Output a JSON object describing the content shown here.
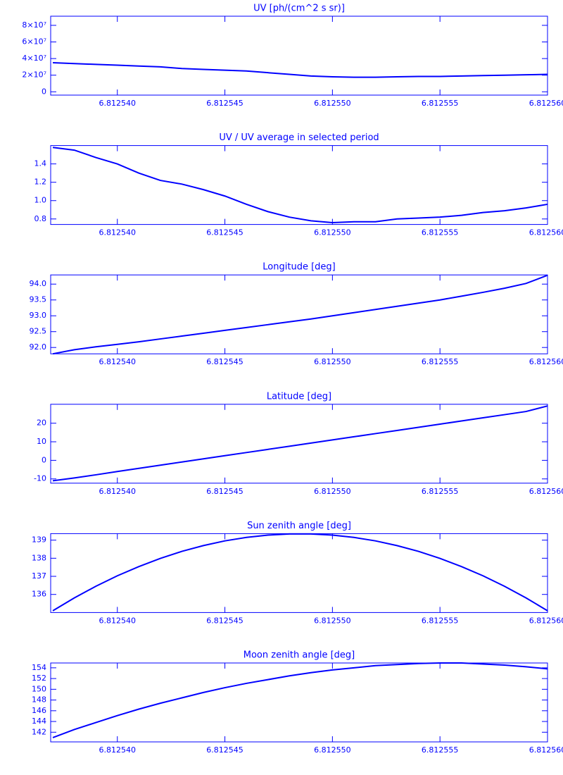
{
  "chart_data": [
    {
      "type": "line",
      "title": "UV [ph/(cm^2 s sr)]",
      "color": "#0000ff",
      "x": [
        6.812537,
        6.812538,
        6.812539,
        6.81254,
        6.812541,
        6.812542,
        6.812543,
        6.812544,
        6.812545,
        6.812546,
        6.812547,
        6.812548,
        6.812549,
        6.81255,
        6.812551,
        6.812552,
        6.812553,
        6.812554,
        6.812555,
        6.812556,
        6.812557,
        6.812558,
        6.812559,
        6.81256
      ],
      "values": [
        35000000,
        34000000,
        33000000,
        32000000,
        31000000,
        30000000,
        28000000,
        27000000,
        26000000,
        25000000,
        23000000,
        21000000,
        19000000,
        18000000,
        17500000,
        17500000,
        18000000,
        18500000,
        18500000,
        19000000,
        19500000,
        20000000,
        20500000,
        21000000
      ],
      "xlim": [
        6.8125369,
        6.81256
      ],
      "xticks": [
        {
          "value": 6.81254,
          "label": "6.812540"
        },
        6.812545,
        {
          "value": 6.81255,
          "label": "6.812550"
        },
        6.812555,
        {
          "value": 6.81256,
          "label": "6.812560"
        }
      ],
      "ylim": [
        -4000000,
        91000000
      ],
      "yticks": [
        0,
        {
          "value": 20000000,
          "label": "2×10⁷"
        },
        {
          "value": 40000000,
          "label": "4×10⁷"
        },
        {
          "value": 60000000,
          "label": "6×10⁷"
        },
        {
          "value": 80000000,
          "label": "8×10⁷"
        }
      ]
    },
    {
      "type": "line",
      "title": "UV / UV average in selected period",
      "color": "#0000ff",
      "x": [
        6.812537,
        6.812538,
        6.812539,
        6.81254,
        6.812541,
        6.812542,
        6.812543,
        6.812544,
        6.812545,
        6.812546,
        6.812547,
        6.812548,
        6.812549,
        6.81255,
        6.812551,
        6.812552,
        6.812553,
        6.812554,
        6.812555,
        6.812556,
        6.812557,
        6.812558,
        6.812559,
        6.81256
      ],
      "values": [
        1.58,
        1.55,
        1.47,
        1.4,
        1.3,
        1.22,
        1.18,
        1.12,
        1.05,
        0.96,
        0.88,
        0.82,
        0.78,
        0.76,
        0.77,
        0.77,
        0.8,
        0.81,
        0.82,
        0.84,
        0.87,
        0.89,
        0.92,
        0.96
      ],
      "xlim": [
        6.8125369,
        6.81256
      ],
      "xticks": [
        {
          "value": 6.81254,
          "label": "6.812540"
        },
        6.812545,
        {
          "value": 6.81255,
          "label": "6.812550"
        },
        6.812555,
        {
          "value": 6.81256,
          "label": "6.812560"
        }
      ],
      "ylim": [
        0.74,
        1.6
      ],
      "yticks": [
        0.8,
        {
          "value": 1,
          "label": "1.0"
        },
        1.2,
        1.4
      ]
    },
    {
      "type": "line",
      "title": "Longitude [deg]",
      "color": "#0000ff",
      "x": [
        6.812537,
        6.812538,
        6.812539,
        6.81254,
        6.812541,
        6.812542,
        6.812543,
        6.812544,
        6.812545,
        6.812546,
        6.812547,
        6.812548,
        6.812549,
        6.81255,
        6.812551,
        6.812552,
        6.812553,
        6.812554,
        6.812555,
        6.812556,
        6.812557,
        6.812558,
        6.812559,
        6.81256
      ],
      "values": [
        91.8,
        91.93,
        92.02,
        92.1,
        92.18,
        92.27,
        92.36,
        92.45,
        92.54,
        92.63,
        92.72,
        92.81,
        92.9,
        93.0,
        93.1,
        93.2,
        93.3,
        93.4,
        93.5,
        93.62,
        93.74,
        93.87,
        94.02,
        94.28
      ],
      "xlim": [
        6.8125369,
        6.81256
      ],
      "xticks": [
        {
          "value": 6.81254,
          "label": "6.812540"
        },
        6.812545,
        {
          "value": 6.81255,
          "label": "6.812550"
        },
        6.812555,
        {
          "value": 6.81256,
          "label": "6.812560"
        }
      ],
      "ylim": [
        91.8,
        94.29
      ],
      "yticks": [
        {
          "value": 92,
          "label": "92.0"
        },
        92.5,
        {
          "value": 93,
          "label": "93.0"
        },
        93.5,
        {
          "value": 94,
          "label": "94.0"
        }
      ]
    },
    {
      "type": "line",
      "title": "Latitude [deg]",
      "color": "#0000ff",
      "x": [
        6.812537,
        6.812538,
        6.812539,
        6.81254,
        6.812541,
        6.812542,
        6.812543,
        6.812544,
        6.812545,
        6.812546,
        6.812547,
        6.812548,
        6.812549,
        6.81255,
        6.812551,
        6.812552,
        6.812553,
        6.812554,
        6.812555,
        6.812556,
        6.812557,
        6.812558,
        6.812559,
        6.81256
      ],
      "values": [
        -11,
        -9.5,
        -7.8,
        -6.0,
        -4.3,
        -2.6,
        -0.9,
        0.8,
        2.5,
        4.2,
        5.9,
        7.6,
        9.3,
        11.0,
        12.7,
        14.4,
        16.1,
        17.8,
        19.5,
        21.2,
        22.9,
        24.6,
        26.3,
        29.3
      ],
      "xlim": [
        6.8125369,
        6.81256
      ],
      "xticks": [
        {
          "value": 6.81254,
          "label": "6.812540"
        },
        6.812545,
        {
          "value": 6.81255,
          "label": "6.812550"
        },
        6.812555,
        {
          "value": 6.81256,
          "label": "6.812560"
        }
      ],
      "ylim": [
        -12.3,
        30.2
      ],
      "yticks": [
        -10,
        0,
        10,
        20
      ]
    },
    {
      "type": "line",
      "title": "Sun zenith angle [deg]",
      "color": "#0000ff",
      "x": [
        6.812537,
        6.812538,
        6.812539,
        6.81254,
        6.812541,
        6.812542,
        6.812543,
        6.812544,
        6.812545,
        6.812546,
        6.812547,
        6.812548,
        6.812549,
        6.81255,
        6.812551,
        6.812552,
        6.812553,
        6.812554,
        6.812555,
        6.812556,
        6.812557,
        6.812558,
        6.812559,
        6.81256
      ],
      "values": [
        135.1,
        135.81,
        136.45,
        137.03,
        137.54,
        137.99,
        138.38,
        138.7,
        138.96,
        139.15,
        139.28,
        139.34,
        139.34,
        139.28,
        139.15,
        138.96,
        138.7,
        138.38,
        137.99,
        137.54,
        137.03,
        136.45,
        135.81,
        135.1
      ],
      "xlim": [
        6.8125369,
        6.81256
      ],
      "xticks": [
        {
          "value": 6.81254,
          "label": "6.812540"
        },
        6.812545,
        {
          "value": 6.81255,
          "label": "6.812550"
        },
        6.812555,
        {
          "value": 6.81256,
          "label": "6.812560"
        }
      ],
      "ylim": [
        135,
        139.36
      ],
      "yticks": [
        136,
        137,
        138,
        139
      ]
    },
    {
      "type": "line",
      "title": "Moon zenith angle [deg]",
      "color": "#0000ff",
      "x": [
        6.812537,
        6.812538,
        6.812539,
        6.81254,
        6.812541,
        6.812542,
        6.812543,
        6.812544,
        6.812545,
        6.812546,
        6.812547,
        6.812548,
        6.812549,
        6.81255,
        6.812551,
        6.812552,
        6.812553,
        6.812554,
        6.812555,
        6.812556,
        6.812557,
        6.812558,
        6.812559,
        6.81256
      ],
      "values": [
        141.0,
        142.5,
        143.8,
        145.1,
        146.3,
        147.4,
        148.4,
        149.4,
        150.3,
        151.1,
        151.8,
        152.5,
        153.1,
        153.6,
        154.0,
        154.4,
        154.6,
        154.8,
        154.9,
        154.9,
        154.7,
        154.5,
        154.2,
        153.8
      ],
      "xlim": [
        6.8125369,
        6.81256
      ],
      "xticks": [
        {
          "value": 6.81254,
          "label": "6.812540"
        },
        6.812545,
        {
          "value": 6.81255,
          "label": "6.812550"
        },
        6.812555,
        {
          "value": 6.81256,
          "label": "6.812560"
        }
      ],
      "ylim": [
        140.2,
        154.9
      ],
      "yticks": [
        142,
        144,
        146,
        148,
        150,
        152,
        154
      ]
    }
  ]
}
